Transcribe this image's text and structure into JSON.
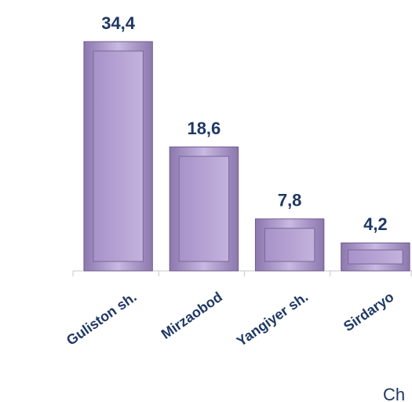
{
  "chart_data": {
    "type": "bar",
    "categories": [
      "Guliston sh.",
      "Mirzaobod",
      "Yangiyer sh.",
      "Sirdaryo"
    ],
    "values": [
      34.4,
      18.6,
      7.8,
      4.2
    ],
    "value_labels": [
      "34,4",
      "18,6",
      "7,8",
      "4,2"
    ],
    "color": "#b7a3d6",
    "annotation": "Ch"
  }
}
